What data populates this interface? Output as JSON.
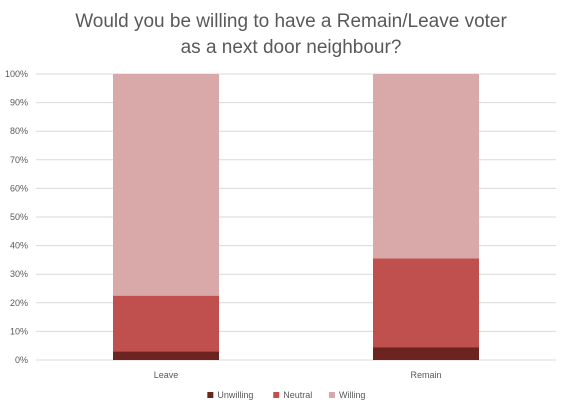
{
  "chart_data": {
    "type": "bar",
    "stacked": true,
    "title_lines": [
      "Would you be willing to have a Remain/Leave voter",
      "as a next door neighbour?"
    ],
    "categories": [
      "Leave",
      "Remain"
    ],
    "series": [
      {
        "name": "Unwilling",
        "values": [
          3,
          4.5
        ],
        "color": "#6b2420"
      },
      {
        "name": "Neutral",
        "values": [
          19.5,
          31
        ],
        "color": "#c0504d"
      },
      {
        "name": "Willing",
        "values": [
          77.5,
          64.5
        ],
        "color": "#d9a9a9"
      }
    ],
    "y_ticks": [
      "0%",
      "10%",
      "20%",
      "30%",
      "40%",
      "50%",
      "60%",
      "70%",
      "80%",
      "90%",
      "100%"
    ],
    "ylim": [
      0,
      100
    ],
    "grid": true,
    "legend": "bottom"
  }
}
